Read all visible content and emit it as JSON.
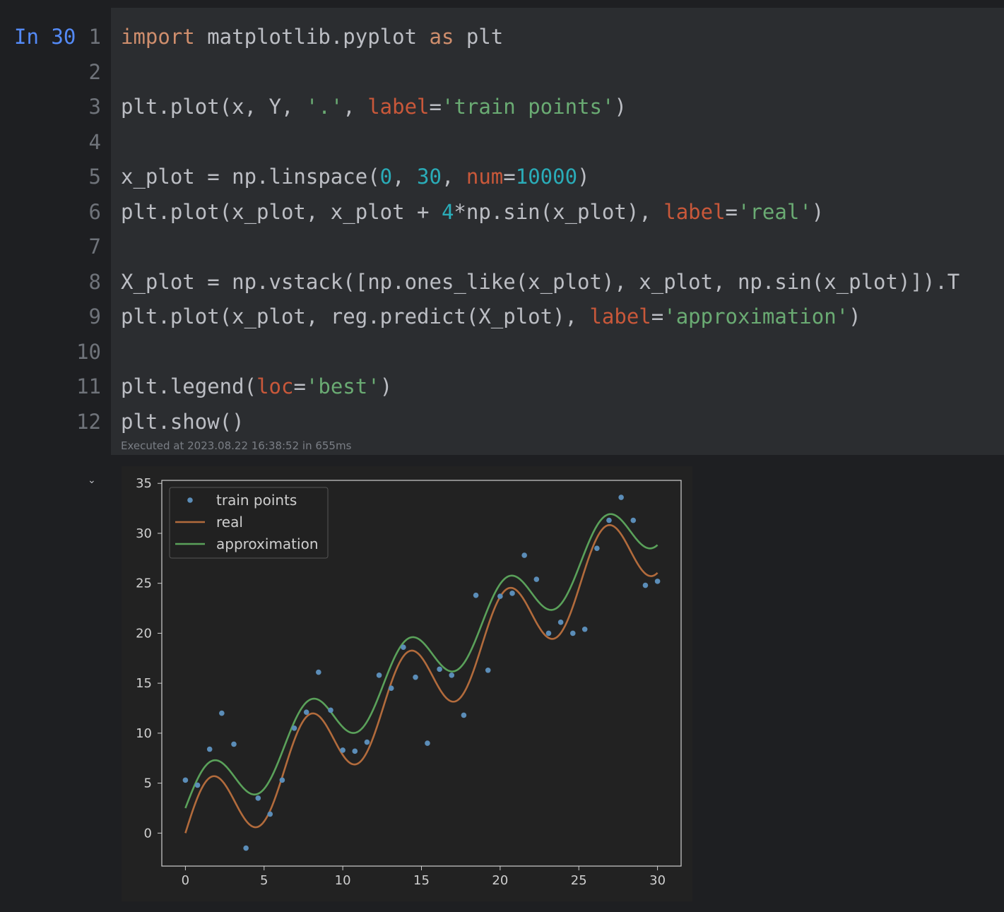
{
  "cell": {
    "prompt": "In 30",
    "lines": [
      {
        "n": "1",
        "tokens": [
          {
            "t": "import",
            "c": "kw"
          },
          {
            "t": " matplotlib.pyplot ",
            "c": ""
          },
          {
            "t": "as",
            "c": "kw"
          },
          {
            "t": " plt",
            "c": ""
          }
        ]
      },
      {
        "n": "2",
        "tokens": []
      },
      {
        "n": "3",
        "tokens": [
          {
            "t": "plt.plot(x, Y, ",
            "c": ""
          },
          {
            "t": "'.'",
            "c": "str"
          },
          {
            "t": ", ",
            "c": ""
          },
          {
            "t": "label",
            "c": "kwarg"
          },
          {
            "t": "=",
            "c": ""
          },
          {
            "t": "'train points'",
            "c": "str"
          },
          {
            "t": ")",
            "c": ""
          }
        ]
      },
      {
        "n": "4",
        "tokens": []
      },
      {
        "n": "5",
        "tokens": [
          {
            "t": "x_plot = np.linspace(",
            "c": ""
          },
          {
            "t": "0",
            "c": "num"
          },
          {
            "t": ", ",
            "c": ""
          },
          {
            "t": "30",
            "c": "num"
          },
          {
            "t": ", ",
            "c": ""
          },
          {
            "t": "num",
            "c": "kwarg"
          },
          {
            "t": "=",
            "c": ""
          },
          {
            "t": "10000",
            "c": "num"
          },
          {
            "t": ")",
            "c": ""
          }
        ]
      },
      {
        "n": "6",
        "tokens": [
          {
            "t": "plt.plot(x_plot, x_plot + ",
            "c": ""
          },
          {
            "t": "4",
            "c": "num"
          },
          {
            "t": "*np.sin(x_plot), ",
            "c": ""
          },
          {
            "t": "label",
            "c": "kwarg"
          },
          {
            "t": "=",
            "c": ""
          },
          {
            "t": "'real'",
            "c": "str"
          },
          {
            "t": ")",
            "c": ""
          }
        ]
      },
      {
        "n": "7",
        "tokens": []
      },
      {
        "n": "8",
        "tokens": [
          {
            "t": "X_plot = np.vstack([np.ones_like(x_plot), x_plot, np.sin(x_plot)]).T",
            "c": ""
          }
        ]
      },
      {
        "n": "9",
        "tokens": [
          {
            "t": "plt.plot(x_plot, reg.predict(X_plot), ",
            "c": ""
          },
          {
            "t": "label",
            "c": "kwarg"
          },
          {
            "t": "=",
            "c": ""
          },
          {
            "t": "'approximation'",
            "c": "str"
          },
          {
            "t": ")",
            "c": ""
          }
        ]
      },
      {
        "n": "10",
        "tokens": []
      },
      {
        "n": "11",
        "tokens": [
          {
            "t": "plt.legend(",
            "c": ""
          },
          {
            "t": "loc",
            "c": "kwarg"
          },
          {
            "t": "=",
            "c": ""
          },
          {
            "t": "'best'",
            "c": "str"
          },
          {
            "t": ")",
            "c": ""
          }
        ]
      },
      {
        "n": "12",
        "tokens": [
          {
            "t": "plt.show()",
            "c": ""
          }
        ]
      }
    ],
    "executed": "Executed at 2023.08.22 16:38:52 in 655ms"
  },
  "output": {
    "collapse_icon": "chevron-down-icon",
    "collapse_glyph": "⌄"
  },
  "chart_data": {
    "type": "line",
    "xlim": [
      -1.5,
      31.5
    ],
    "ylim": [
      -3.3,
      35.3
    ],
    "x_ticks": [
      0,
      5,
      10,
      15,
      20,
      25,
      30
    ],
    "y_ticks": [
      0,
      5,
      10,
      15,
      20,
      25,
      30,
      35
    ],
    "legend": {
      "placement": "top-left",
      "entries": [
        "train points",
        "real",
        "approximation"
      ]
    },
    "colors": {
      "points": "#5b8db8",
      "real": "#b26b3c",
      "approximation": "#5aa15a",
      "background": "#222222",
      "axes": "#cfcfcf"
    },
    "series": [
      {
        "name": "train points",
        "kind": "scatter",
        "x": [
          0,
          0.77,
          1.54,
          2.31,
          3.08,
          3.85,
          4.62,
          5.38,
          6.15,
          6.92,
          7.69,
          8.46,
          9.23,
          10.0,
          10.77,
          11.54,
          12.31,
          13.08,
          13.85,
          14.62,
          15.38,
          16.15,
          16.92,
          17.69,
          18.46,
          19.23,
          20.0,
          20.77,
          21.54,
          22.31,
          23.08,
          23.85,
          24.62,
          25.38,
          26.15,
          26.92,
          27.69,
          28.46,
          29.23,
          30.0
        ],
        "y": [
          5.3,
          4.8,
          8.4,
          12.0,
          8.9,
          -1.5,
          3.5,
          1.9,
          5.3,
          10.5,
          12.1,
          16.1,
          12.3,
          8.3,
          8.2,
          9.1,
          15.8,
          14.5,
          18.6,
          15.6,
          9.0,
          16.4,
          15.8,
          11.8,
          23.8,
          16.3,
          23.7,
          24.0,
          27.8,
          25.4,
          20.0,
          21.1,
          20.0,
          20.4,
          28.5,
          31.3,
          33.6,
          31.3,
          24.8,
          25.2
        ]
      },
      {
        "name": "real",
        "kind": "line",
        "formula": "x + 4*sin(x)",
        "x_range": [
          0,
          30
        ]
      },
      {
        "name": "approximation",
        "kind": "line",
        "formula": "2.5 + 0.98*x + 3.1*sin(x)",
        "x_range": [
          0,
          30
        ]
      }
    ]
  }
}
